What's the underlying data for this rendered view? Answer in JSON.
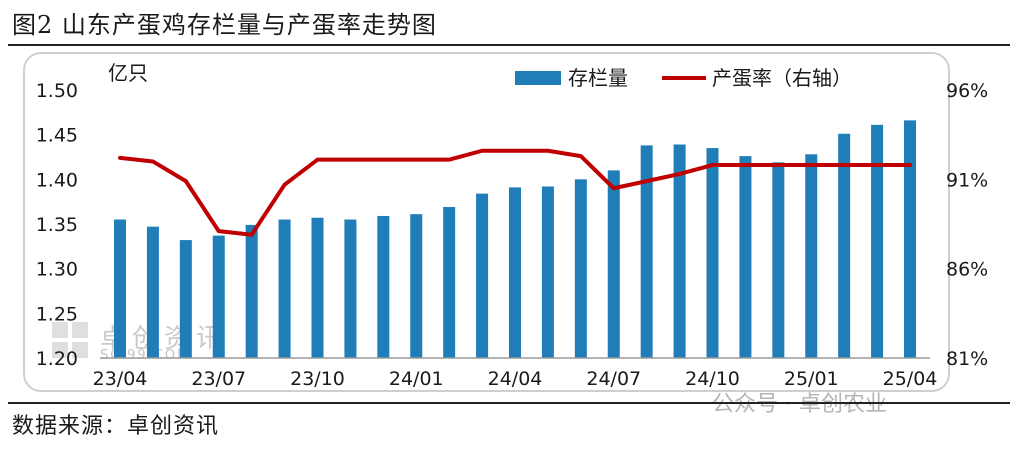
{
  "figure": {
    "title": "图2  山东产蛋鸡存栏量与产蛋率走势图",
    "source": "数据来源：卓创资讯",
    "watermark_social": "公众号 · 卓创农业",
    "watermark_brand": "卓创资讯",
    "watermark_url": "SCI99.COM"
  },
  "colors": {
    "bar": "#1f7db8",
    "line": "#c00000",
    "axis_text": "#1a1a1a"
  },
  "chart_data": {
    "type": "bar",
    "y_unit_label": "亿只",
    "x": [
      "23/04",
      "23/05",
      "23/06",
      "23/07",
      "23/08",
      "23/09",
      "23/10",
      "23/11",
      "23/12",
      "24/01",
      "24/02",
      "24/03",
      "24/04",
      "24/05",
      "24/06",
      "24/07",
      "24/08",
      "24/09",
      "24/10",
      "24/11",
      "24/12",
      "25/01",
      "25/02",
      "25/03",
      "25/04"
    ],
    "x_tick_labels": [
      "23/04",
      "23/07",
      "23/10",
      "24/01",
      "24/04",
      "24/07",
      "24/10",
      "25/01",
      "25/04"
    ],
    "x_tick_every": 3,
    "series": [
      {
        "name": "存栏量",
        "type": "bar",
        "axis": "left",
        "values": [
          1.355,
          1.347,
          1.332,
          1.337,
          1.349,
          1.355,
          1.357,
          1.355,
          1.359,
          1.361,
          1.369,
          1.384,
          1.391,
          1.392,
          1.4,
          1.41,
          1.438,
          1.439,
          1.435,
          1.426,
          1.419,
          1.428,
          1.451,
          1.461,
          1.466
        ]
      },
      {
        "name": "产蛋率（右轴）",
        "type": "line",
        "axis": "right",
        "values": [
          92.2,
          92.0,
          90.9,
          88.1,
          87.9,
          90.7,
          92.1,
          92.1,
          92.1,
          92.1,
          92.1,
          92.6,
          92.6,
          92.6,
          92.3,
          90.5,
          90.9,
          91.3,
          91.8,
          91.8,
          91.8,
          91.8,
          91.8,
          91.8,
          91.8
        ]
      }
    ],
    "y_left": {
      "min": 1.2,
      "max": 1.5,
      "ticks": [
        "1.20",
        "1.25",
        "1.30",
        "1.35",
        "1.40",
        "1.45",
        "1.50"
      ],
      "tick_values": [
        1.2,
        1.25,
        1.3,
        1.35,
        1.4,
        1.45,
        1.5
      ]
    },
    "y_right": {
      "min": 81,
      "max": 96,
      "ticks": [
        "81%",
        "86%",
        "91%",
        "96%"
      ],
      "tick_values": [
        81,
        86,
        91,
        96
      ]
    },
    "legend_position": "top-right",
    "grid": false
  }
}
